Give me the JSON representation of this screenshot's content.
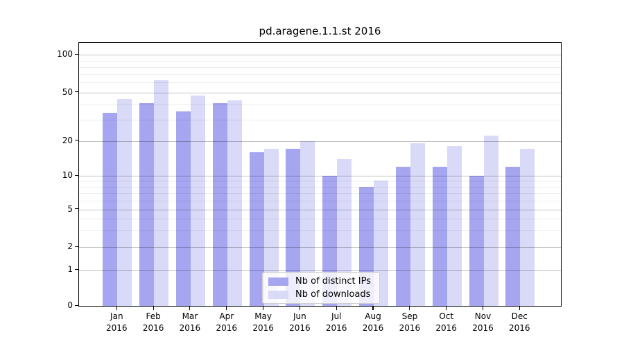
{
  "chart_data": {
    "type": "bar",
    "title": "pd.aragene.1.1.st 2016",
    "categories": [
      "Jan 2016",
      "Feb 2016",
      "Mar 2016",
      "Apr 2016",
      "May 2016",
      "Jun 2016",
      "Jul 2016",
      "Aug 2016",
      "Sep 2016",
      "Oct 2016",
      "Nov 2016",
      "Dec 2016"
    ],
    "series": [
      {
        "name": "Nb of distinct IPs",
        "color": "#a5a5f0",
        "values": [
          34,
          41,
          35,
          41,
          16,
          17,
          10,
          8,
          12,
          12,
          10,
          12
        ]
      },
      {
        "name": "Nb of downloads",
        "color": "#d9d9f8",
        "values": [
          44,
          63,
          47,
          43,
          17,
          20,
          14,
          9,
          19,
          18,
          22,
          17
        ]
      }
    ],
    "y_axis": {
      "scale": "symlog",
      "ticks": [
        0,
        1,
        2,
        5,
        10,
        20,
        50,
        100
      ],
      "ylim": [
        0,
        125
      ],
      "grid": true
    },
    "x_axis": {
      "tick_label_year": "2016"
    },
    "legend_position": "lower center",
    "background_color": "#ffffff"
  }
}
